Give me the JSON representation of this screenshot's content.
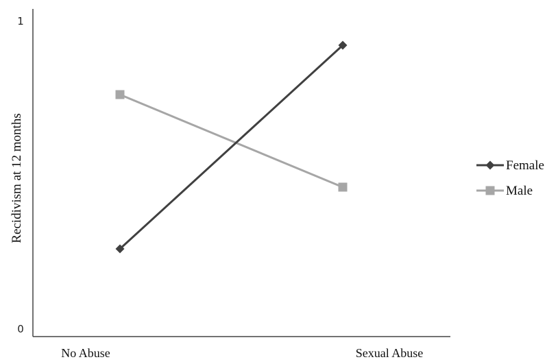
{
  "chart_data": {
    "type": "line",
    "ylabel": "Recidivism at 12 months",
    "yticks": [
      "0",
      "1"
    ],
    "ylim": [
      0,
      1
    ],
    "categories": [
      "No Abuse",
      "Sexual Abuse"
    ],
    "series": [
      {
        "name": "Female",
        "values": [
          0.26,
          0.92
        ],
        "color": "#404040",
        "marker": "diamond"
      },
      {
        "name": "Male",
        "values": [
          0.76,
          0.46
        ],
        "color": "#a6a6a6",
        "marker": "square"
      }
    ],
    "legend_position": "right",
    "grid": false
  }
}
